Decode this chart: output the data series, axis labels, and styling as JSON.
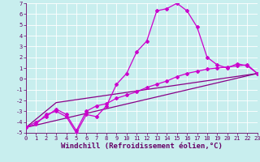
{
  "xlabel": "Windchill (Refroidissement éolien,°C)",
  "xlim": [
    0,
    23
  ],
  "ylim": [
    -5,
    7
  ],
  "xticks": [
    0,
    1,
    2,
    3,
    4,
    5,
    6,
    7,
    8,
    9,
    10,
    11,
    12,
    13,
    14,
    15,
    16,
    17,
    18,
    19,
    20,
    21,
    22,
    23
  ],
  "yticks": [
    -5,
    -4,
    -3,
    -2,
    -1,
    0,
    1,
    2,
    3,
    4,
    5,
    6,
    7
  ],
  "bg_color": "#c8eeee",
  "grid_color": "#aadddd",
  "lc1": "#cc00cc",
  "lc2": "#880088",
  "line1_x": [
    0,
    1,
    2,
    3,
    4,
    5,
    6,
    7,
    8,
    9,
    10,
    11,
    12,
    13,
    14,
    15,
    16,
    17,
    18,
    19,
    20,
    21,
    22,
    23
  ],
  "line1_y": [
    -4.5,
    -4.2,
    -3.3,
    -3.0,
    -3.5,
    -5.0,
    -3.3,
    -3.5,
    -2.5,
    -0.5,
    0.5,
    2.5,
    3.5,
    6.3,
    6.5,
    7.0,
    6.3,
    4.8,
    2.0,
    1.3,
    1.0,
    1.4,
    1.2,
    0.5
  ],
  "line2_x": [
    0,
    1,
    2,
    3,
    4,
    5,
    6,
    7,
    8,
    9,
    10,
    11,
    12,
    13,
    14,
    15,
    16,
    17,
    18,
    19,
    20,
    21,
    22,
    23
  ],
  "line2_y": [
    -4.5,
    -4.0,
    -3.5,
    -2.8,
    -3.3,
    -4.8,
    -3.0,
    -2.5,
    -2.3,
    -1.8,
    -1.5,
    -1.2,
    -0.8,
    -0.5,
    -0.2,
    0.2,
    0.5,
    0.7,
    0.9,
    1.0,
    1.1,
    1.2,
    1.3,
    0.5
  ],
  "line3_x": [
    0,
    23
  ],
  "line3_y": [
    -4.5,
    0.5
  ],
  "line4_x": [
    0,
    3,
    23
  ],
  "line4_y": [
    -4.5,
    -2.2,
    0.5
  ],
  "tick_fs": 5,
  "xlabel_fs": 6.5
}
